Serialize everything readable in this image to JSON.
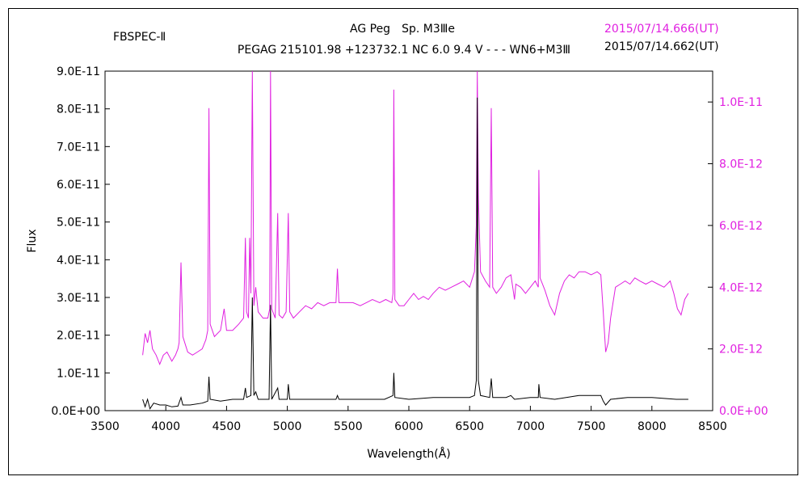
{
  "header": {
    "instrument": "FBSPEC-Ⅱ",
    "object_line": "AG Peg　Sp. M3Ⅲe",
    "info_line": "PEGAG 215101.98 +123732.1 NC 6.0 9.4 V - - - WN6+M3Ⅲ",
    "date_magenta": "2015/07/14.666(UT)",
    "date_black": "2015/07/14.662(UT)"
  },
  "colors": {
    "series_magenta": "#e020e0",
    "series_black": "#000000",
    "frame": "#000000"
  },
  "chart_data": {
    "type": "line",
    "xlabel": "Wavelength(Å)",
    "ylabel": "Flux",
    "xlim": [
      3500,
      8500
    ],
    "ylim_left": [
      0,
      9e-11
    ],
    "ylim_right": [
      0,
      1.1e-11
    ],
    "grid": false,
    "x_ticks": [
      "3500",
      "4000",
      "4500",
      "5000",
      "5500",
      "6000",
      "6500",
      "7000",
      "7500",
      "8000",
      "8500"
    ],
    "y_ticks_left": [
      "0.0E+00",
      "1.0E-11",
      "2.0E-11",
      "3.0E-11",
      "4.0E-11",
      "5.0E-11",
      "6.0E-11",
      "7.0E-11",
      "8.0E-11",
      "9.0E-11"
    ],
    "y_ticks_right": [
      "0.0E+00",
      "2.0E-12",
      "4.0E-12",
      "6.0E-12",
      "8.0E-12",
      "1.0E-11"
    ],
    "series": [
      {
        "axis": "right",
        "color": "#e020e0",
        "points": [
          [
            3810,
            1.8e-12
          ],
          [
            3830,
            2.5e-12
          ],
          [
            3850,
            2.2e-12
          ],
          [
            3870,
            2.6e-12
          ],
          [
            3890,
            2e-12
          ],
          [
            3920,
            1.8e-12
          ],
          [
            3950,
            1.5e-12
          ],
          [
            3980,
            1.8e-12
          ],
          [
            4010,
            1.9e-12
          ],
          [
            4050,
            1.6e-12
          ],
          [
            4080,
            1.8e-12
          ],
          [
            4100,
            2e-12
          ],
          [
            4110,
            2.2e-12
          ],
          [
            4125,
            4.8e-12
          ],
          [
            4140,
            2.4e-12
          ],
          [
            4180,
            1.9e-12
          ],
          [
            4220,
            1.8e-12
          ],
          [
            4260,
            1.9e-12
          ],
          [
            4300,
            2e-12
          ],
          [
            4330,
            2.3e-12
          ],
          [
            4345,
            2.6e-12
          ],
          [
            4355,
            9.8e-12
          ],
          [
            4365,
            2.8e-12
          ],
          [
            4400,
            2.4e-12
          ],
          [
            4450,
            2.6e-12
          ],
          [
            4480,
            3.3e-12
          ],
          [
            4500,
            2.6e-12
          ],
          [
            4550,
            2.6e-12
          ],
          [
            4600,
            2.8e-12
          ],
          [
            4640,
            3e-12
          ],
          [
            4655,
            5.6e-12
          ],
          [
            4665,
            3.2e-12
          ],
          [
            4680,
            3e-12
          ],
          [
            4690,
            5.6e-12
          ],
          [
            4700,
            3.8e-12
          ],
          [
            4712,
            1.1e-11
          ],
          [
            4725,
            3.4e-12
          ],
          [
            4740,
            4e-12
          ],
          [
            4760,
            3.2e-12
          ],
          [
            4800,
            3e-12
          ],
          [
            4840,
            3e-12
          ],
          [
            4855,
            3.3e-12
          ],
          [
            4862,
            1.1e-11
          ],
          [
            4872,
            3.3e-12
          ],
          [
            4900,
            3e-12
          ],
          [
            4921,
            6.4e-12
          ],
          [
            4932,
            3.1e-12
          ],
          [
            4960,
            3e-12
          ],
          [
            4990,
            3.2e-12
          ],
          [
            5008,
            6.4e-12
          ],
          [
            5020,
            3.2e-12
          ],
          [
            5050,
            3e-12
          ],
          [
            5100,
            3.2e-12
          ],
          [
            5150,
            3.4e-12
          ],
          [
            5200,
            3.3e-12
          ],
          [
            5250,
            3.5e-12
          ],
          [
            5300,
            3.4e-12
          ],
          [
            5350,
            3.5e-12
          ],
          [
            5400,
            3.5e-12
          ],
          [
            5412,
            4.6e-12
          ],
          [
            5425,
            3.5e-12
          ],
          [
            5480,
            3.5e-12
          ],
          [
            5540,
            3.5e-12
          ],
          [
            5600,
            3.4e-12
          ],
          [
            5650,
            3.5e-12
          ],
          [
            5700,
            3.6e-12
          ],
          [
            5760,
            3.5e-12
          ],
          [
            5810,
            3.6e-12
          ],
          [
            5860,
            3.5e-12
          ],
          [
            5870,
            3.8e-12
          ],
          [
            5876,
            1.04e-11
          ],
          [
            5885,
            3.6e-12
          ],
          [
            5920,
            3.4e-12
          ],
          [
            5960,
            3.4e-12
          ],
          [
            6000,
            3.6e-12
          ],
          [
            6040,
            3.8e-12
          ],
          [
            6080,
            3.6e-12
          ],
          [
            6120,
            3.7e-12
          ],
          [
            6160,
            3.6e-12
          ],
          [
            6200,
            3.8e-12
          ],
          [
            6250,
            4e-12
          ],
          [
            6300,
            3.9e-12
          ],
          [
            6350,
            4e-12
          ],
          [
            6400,
            4.1e-12
          ],
          [
            6450,
            4.2e-12
          ],
          [
            6500,
            4e-12
          ],
          [
            6540,
            4.5e-12
          ],
          [
            6555,
            6e-12
          ],
          [
            6563,
            1.1e-11
          ],
          [
            6572,
            7e-12
          ],
          [
            6590,
            4.5e-12
          ],
          [
            6630,
            4.2e-12
          ],
          [
            6665,
            4e-12
          ],
          [
            6678,
            9.8e-12
          ],
          [
            6690,
            4e-12
          ],
          [
            6720,
            3.8e-12
          ],
          [
            6760,
            4e-12
          ],
          [
            6800,
            4.3e-12
          ],
          [
            6840,
            4.4e-12
          ],
          [
            6870,
            3.6e-12
          ],
          [
            6880,
            4.1e-12
          ],
          [
            6920,
            4e-12
          ],
          [
            6960,
            3.8e-12
          ],
          [
            7000,
            4e-12
          ],
          [
            7040,
            4.2e-12
          ],
          [
            7065,
            4e-12
          ],
          [
            7070,
            7.8e-12
          ],
          [
            7080,
            4.3e-12
          ],
          [
            7120,
            3.9e-12
          ],
          [
            7160,
            3.4e-12
          ],
          [
            7200,
            3.1e-12
          ],
          [
            7240,
            3.8e-12
          ],
          [
            7280,
            4.2e-12
          ],
          [
            7320,
            4.4e-12
          ],
          [
            7360,
            4.3e-12
          ],
          [
            7400,
            4.5e-12
          ],
          [
            7450,
            4.5e-12
          ],
          [
            7500,
            4.4e-12
          ],
          [
            7550,
            4.5e-12
          ],
          [
            7580,
            4.4e-12
          ],
          [
            7600,
            3.2e-12
          ],
          [
            7620,
            1.9e-12
          ],
          [
            7640,
            2.2e-12
          ],
          [
            7660,
            3e-12
          ],
          [
            7700,
            4e-12
          ],
          [
            7740,
            4.1e-12
          ],
          [
            7780,
            4.2e-12
          ],
          [
            7820,
            4.1e-12
          ],
          [
            7860,
            4.3e-12
          ],
          [
            7900,
            4.2e-12
          ],
          [
            7950,
            4.1e-12
          ],
          [
            8000,
            4.2e-12
          ],
          [
            8050,
            4.1e-12
          ],
          [
            8100,
            4e-12
          ],
          [
            8150,
            4.2e-12
          ],
          [
            8180,
            3.8e-12
          ],
          [
            8210,
            3.3e-12
          ],
          [
            8240,
            3.1e-12
          ],
          [
            8270,
            3.6e-12
          ],
          [
            8300,
            3.8e-12
          ]
        ]
      },
      {
        "axis": "left",
        "color": "#000000",
        "points": [
          [
            3810,
            3e-12
          ],
          [
            3830,
            1e-12
          ],
          [
            3850,
            3e-12
          ],
          [
            3870,
            5e-13
          ],
          [
            3900,
            2e-12
          ],
          [
            3950,
            1.5e-12
          ],
          [
            4000,
            1.5e-12
          ],
          [
            4050,
            1e-12
          ],
          [
            4100,
            1.2e-12
          ],
          [
            4125,
            3.5e-12
          ],
          [
            4140,
            1.5e-12
          ],
          [
            4200,
            1.5e-12
          ],
          [
            4300,
            2e-12
          ],
          [
            4345,
            2.5e-12
          ],
          [
            4355,
            9e-12
          ],
          [
            4365,
            3e-12
          ],
          [
            4450,
            2.5e-12
          ],
          [
            4550,
            3e-12
          ],
          [
            4640,
            3e-12
          ],
          [
            4655,
            6e-12
          ],
          [
            4665,
            3.5e-12
          ],
          [
            4700,
            4e-12
          ],
          [
            4712,
            3e-11
          ],
          [
            4725,
            4e-12
          ],
          [
            4740,
            5e-12
          ],
          [
            4760,
            3e-12
          ],
          [
            4850,
            3e-12
          ],
          [
            4862,
            2.8e-11
          ],
          [
            4872,
            3e-12
          ],
          [
            4921,
            6e-12
          ],
          [
            4932,
            3e-12
          ],
          [
            5000,
            3e-12
          ],
          [
            5008,
            7e-12
          ],
          [
            5020,
            3e-12
          ],
          [
            5200,
            3e-12
          ],
          [
            5400,
            3e-12
          ],
          [
            5412,
            4e-12
          ],
          [
            5425,
            3e-12
          ],
          [
            5600,
            3e-12
          ],
          [
            5800,
            3e-12
          ],
          [
            5870,
            4e-12
          ],
          [
            5876,
            1e-11
          ],
          [
            5885,
            3.5e-12
          ],
          [
            6000,
            3e-12
          ],
          [
            6200,
            3.5e-12
          ],
          [
            6400,
            3.5e-12
          ],
          [
            6500,
            3.5e-12
          ],
          [
            6540,
            4e-12
          ],
          [
            6555,
            8e-12
          ],
          [
            6563,
            8.3e-11
          ],
          [
            6572,
            8e-12
          ],
          [
            6590,
            4e-12
          ],
          [
            6665,
            3.5e-12
          ],
          [
            6678,
            8.5e-12
          ],
          [
            6690,
            3.5e-12
          ],
          [
            6800,
            3.5e-12
          ],
          [
            6840,
            4e-12
          ],
          [
            6870,
            3e-12
          ],
          [
            7000,
            3.5e-12
          ],
          [
            7065,
            3.5e-12
          ],
          [
            7070,
            7e-12
          ],
          [
            7080,
            3.5e-12
          ],
          [
            7200,
            3e-12
          ],
          [
            7400,
            4e-12
          ],
          [
            7580,
            4e-12
          ],
          [
            7600,
            2.5e-12
          ],
          [
            7620,
            1.5e-12
          ],
          [
            7660,
            3e-12
          ],
          [
            7800,
            3.5e-12
          ],
          [
            8000,
            3.5e-12
          ],
          [
            8200,
            3e-12
          ],
          [
            8300,
            3e-12
          ]
        ]
      }
    ]
  }
}
